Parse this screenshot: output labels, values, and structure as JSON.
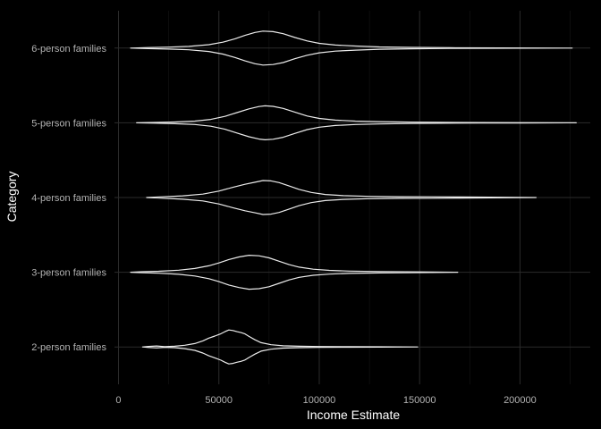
{
  "chart_data": {
    "type": "violin",
    "orientation": "horizontal",
    "xlabel": "Income Estimate",
    "ylabel": "Category",
    "xlim": [
      -2000,
      235000
    ],
    "x_ticks": [
      0,
      50000,
      100000,
      150000,
      200000
    ],
    "x_tick_labels": [
      "0",
      "50000",
      "100000",
      "150000",
      "200000"
    ],
    "grid": true,
    "theme": "dark",
    "line_color": "#ebebeb",
    "categories": [
      "2-person families",
      "3-person families",
      "4-person families",
      "5-person families",
      "6-person families"
    ],
    "series": [
      {
        "category": "2-person families",
        "min": 12000,
        "max": 149000,
        "profile": [
          [
            12000,
            0.0
          ],
          [
            15000,
            0.03
          ],
          [
            19000,
            0.06
          ],
          [
            23000,
            0.02
          ],
          [
            28000,
            0.04
          ],
          [
            33000,
            0.1
          ],
          [
            38000,
            0.2
          ],
          [
            42000,
            0.36
          ],
          [
            45000,
            0.52
          ],
          [
            48000,
            0.64
          ],
          [
            51000,
            0.78
          ],
          [
            53000,
            0.9
          ],
          [
            55000,
            1.0
          ],
          [
            57000,
            0.97
          ],
          [
            59000,
            0.9
          ],
          [
            61000,
            0.85
          ],
          [
            63000,
            0.77
          ],
          [
            65000,
            0.62
          ],
          [
            68000,
            0.42
          ],
          [
            71000,
            0.25
          ],
          [
            76000,
            0.13
          ],
          [
            82000,
            0.07
          ],
          [
            90000,
            0.04
          ],
          [
            100000,
            0.025
          ],
          [
            115000,
            0.015
          ],
          [
            130000,
            0.008
          ],
          [
            149000,
            0.0
          ]
        ]
      },
      {
        "category": "3-person families",
        "min": 6000,
        "max": 169000,
        "profile": [
          [
            6000,
            0.0
          ],
          [
            12000,
            0.03
          ],
          [
            20000,
            0.06
          ],
          [
            30000,
            0.12
          ],
          [
            38000,
            0.22
          ],
          [
            45000,
            0.38
          ],
          [
            50000,
            0.55
          ],
          [
            55000,
            0.75
          ],
          [
            60000,
            0.9
          ],
          [
            65000,
            1.0
          ],
          [
            70000,
            0.97
          ],
          [
            75000,
            0.85
          ],
          [
            80000,
            0.65
          ],
          [
            85000,
            0.45
          ],
          [
            90000,
            0.3
          ],
          [
            97000,
            0.18
          ],
          [
            105000,
            0.11
          ],
          [
            115000,
            0.07
          ],
          [
            130000,
            0.04
          ],
          [
            150000,
            0.02
          ],
          [
            169000,
            0.0
          ]
        ]
      },
      {
        "category": "4-person families",
        "min": 14000,
        "max": 208000,
        "profile": [
          [
            14000,
            0.0
          ],
          [
            22000,
            0.04
          ],
          [
            32000,
            0.1
          ],
          [
            42000,
            0.2
          ],
          [
            50000,
            0.38
          ],
          [
            57000,
            0.6
          ],
          [
            63000,
            0.78
          ],
          [
            68000,
            0.9
          ],
          [
            72000,
            1.0
          ],
          [
            76000,
            0.98
          ],
          [
            80000,
            0.88
          ],
          [
            85000,
            0.68
          ],
          [
            90000,
            0.48
          ],
          [
            96000,
            0.3
          ],
          [
            103000,
            0.18
          ],
          [
            112000,
            0.11
          ],
          [
            125000,
            0.07
          ],
          [
            140000,
            0.05
          ],
          [
            155000,
            0.04
          ],
          [
            170000,
            0.03
          ],
          [
            185000,
            0.02
          ],
          [
            208000,
            0.0
          ]
        ]
      },
      {
        "category": "5-person families",
        "min": 9000,
        "max": 228000,
        "profile": [
          [
            9000,
            0.0
          ],
          [
            18000,
            0.02
          ],
          [
            28000,
            0.05
          ],
          [
            38000,
            0.1
          ],
          [
            46000,
            0.2
          ],
          [
            53000,
            0.38
          ],
          [
            59000,
            0.6
          ],
          [
            65000,
            0.82
          ],
          [
            70000,
            0.96
          ],
          [
            73000,
            1.0
          ],
          [
            77000,
            0.97
          ],
          [
            82000,
            0.85
          ],
          [
            88000,
            0.62
          ],
          [
            94000,
            0.4
          ],
          [
            100000,
            0.26
          ],
          [
            108000,
            0.16
          ],
          [
            118000,
            0.1
          ],
          [
            130000,
            0.07
          ],
          [
            145000,
            0.04
          ],
          [
            160000,
            0.025
          ],
          [
            180000,
            0.015
          ],
          [
            200000,
            0.008
          ],
          [
            228000,
            0.0
          ]
        ]
      },
      {
        "category": "6-person families",
        "min": 6000,
        "max": 226000,
        "profile": [
          [
            6000,
            0.0
          ],
          [
            15000,
            0.03
          ],
          [
            25000,
            0.06
          ],
          [
            35000,
            0.1
          ],
          [
            45000,
            0.2
          ],
          [
            52000,
            0.35
          ],
          [
            58000,
            0.55
          ],
          [
            63000,
            0.75
          ],
          [
            68000,
            0.92
          ],
          [
            72000,
            1.0
          ],
          [
            77000,
            0.97
          ],
          [
            82000,
            0.85
          ],
          [
            88000,
            0.62
          ],
          [
            94000,
            0.42
          ],
          [
            100000,
            0.28
          ],
          [
            108000,
            0.18
          ],
          [
            118000,
            0.12
          ],
          [
            130000,
            0.07
          ],
          [
            145000,
            0.04
          ],
          [
            165000,
            0.02
          ],
          [
            190000,
            0.01
          ],
          [
            226000,
            0.0
          ]
        ]
      }
    ]
  }
}
